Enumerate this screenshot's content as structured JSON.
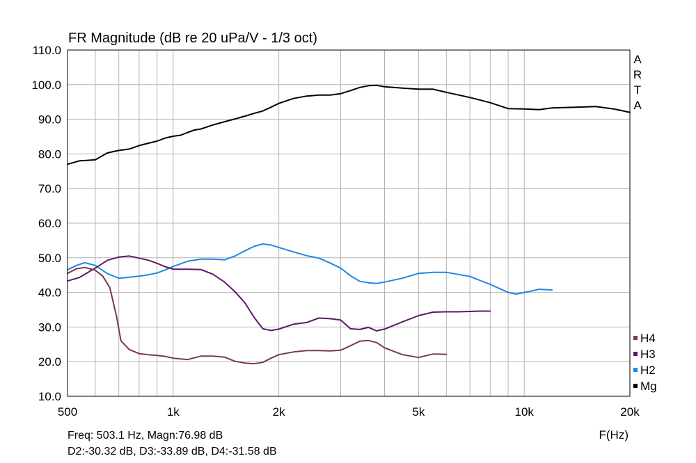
{
  "chart_data": {
    "type": "line",
    "title": "FR Magnitude (dB re 20 uPa/V - 1/3 oct)",
    "xlabel": "F(Hz)",
    "ylabel": "",
    "x_scale": "log",
    "xlim": [
      500,
      20000
    ],
    "ylim": [
      10,
      110
    ],
    "grid": true,
    "legend_position": "bottom-right",
    "watermark": "ARTA",
    "x_ticks": [
      {
        "value": 500,
        "label": "500"
      },
      {
        "value": 1000,
        "label": "1k"
      },
      {
        "value": 2000,
        "label": "2k"
      },
      {
        "value": 5000,
        "label": "5k"
      },
      {
        "value": 10000,
        "label": "10k"
      },
      {
        "value": 20000,
        "label": "20k"
      }
    ],
    "y_ticks": [
      {
        "value": 10,
        "label": "10.0"
      },
      {
        "value": 20,
        "label": "20.0"
      },
      {
        "value": 30,
        "label": "30.0"
      },
      {
        "value": 40,
        "label": "40.0"
      },
      {
        "value": 50,
        "label": "50.0"
      },
      {
        "value": 60,
        "label": "60.0"
      },
      {
        "value": 70,
        "label": "70.0"
      },
      {
        "value": 80,
        "label": "80.0"
      },
      {
        "value": 90,
        "label": "90.0"
      },
      {
        "value": 100,
        "label": "100.0"
      },
      {
        "value": 110,
        "label": "110.0"
      }
    ],
    "series": [
      {
        "name": "Mg",
        "color": "#000000",
        "points": [
          [
            500,
            77.0
          ],
          [
            540,
            78.0
          ],
          [
            600,
            78.3
          ],
          [
            650,
            80.3
          ],
          [
            700,
            81.0
          ],
          [
            750,
            81.4
          ],
          [
            800,
            82.4
          ],
          [
            850,
            83.1
          ],
          [
            900,
            83.7
          ],
          [
            950,
            84.6
          ],
          [
            1000,
            85.1
          ],
          [
            1050,
            85.4
          ],
          [
            1100,
            86.2
          ],
          [
            1150,
            86.9
          ],
          [
            1200,
            87.2
          ],
          [
            1300,
            88.4
          ],
          [
            1400,
            89.3
          ],
          [
            1500,
            90.1
          ],
          [
            1600,
            90.9
          ],
          [
            1700,
            91.7
          ],
          [
            1800,
            92.4
          ],
          [
            1900,
            93.5
          ],
          [
            2000,
            94.6
          ],
          [
            2200,
            96.0
          ],
          [
            2400,
            96.7
          ],
          [
            2600,
            97.0
          ],
          [
            2800,
            97.0
          ],
          [
            3000,
            97.4
          ],
          [
            3200,
            98.3
          ],
          [
            3400,
            99.2
          ],
          [
            3600,
            99.7
          ],
          [
            3800,
            99.8
          ],
          [
            4000,
            99.4
          ],
          [
            4500,
            99.0
          ],
          [
            5000,
            98.7
          ],
          [
            5500,
            98.7
          ],
          [
            6000,
            97.8
          ],
          [
            7000,
            96.3
          ],
          [
            8000,
            94.8
          ],
          [
            9000,
            93.1
          ],
          [
            10000,
            93.0
          ],
          [
            11000,
            92.8
          ],
          [
            12000,
            93.3
          ],
          [
            14000,
            93.5
          ],
          [
            16000,
            93.7
          ],
          [
            18000,
            93.0
          ],
          [
            20000,
            92.0
          ]
        ]
      },
      {
        "name": "H2",
        "color": "#1e88e5",
        "points": [
          [
            500,
            46.5
          ],
          [
            530,
            47.8
          ],
          [
            560,
            48.6
          ],
          [
            600,
            47.8
          ],
          [
            650,
            45.4
          ],
          [
            700,
            44.1
          ],
          [
            750,
            44.4
          ],
          [
            800,
            44.7
          ],
          [
            850,
            45.1
          ],
          [
            900,
            45.6
          ],
          [
            950,
            46.5
          ],
          [
            1000,
            47.5
          ],
          [
            1100,
            49.0
          ],
          [
            1200,
            49.6
          ],
          [
            1300,
            49.6
          ],
          [
            1400,
            49.4
          ],
          [
            1500,
            50.5
          ],
          [
            1600,
            52.0
          ],
          [
            1700,
            53.3
          ],
          [
            1800,
            54.0
          ],
          [
            1900,
            53.7
          ],
          [
            2000,
            53.0
          ],
          [
            2200,
            51.7
          ],
          [
            2400,
            50.6
          ],
          [
            2600,
            49.9
          ],
          [
            2800,
            48.5
          ],
          [
            3000,
            47.0
          ],
          [
            3200,
            44.8
          ],
          [
            3400,
            43.2
          ],
          [
            3600,
            42.8
          ],
          [
            3800,
            42.6
          ],
          [
            4000,
            43.0
          ],
          [
            4500,
            44.1
          ],
          [
            5000,
            45.5
          ],
          [
            5500,
            45.8
          ],
          [
            6000,
            45.8
          ],
          [
            7000,
            44.6
          ],
          [
            8000,
            42.3
          ],
          [
            9000,
            40.0
          ],
          [
            9500,
            39.5
          ],
          [
            10000,
            40.0
          ],
          [
            10500,
            40.4
          ],
          [
            11000,
            40.9
          ],
          [
            12000,
            40.7
          ]
        ]
      },
      {
        "name": "H3",
        "color": "#5c1866",
        "points": [
          [
            500,
            43.3
          ],
          [
            540,
            44.3
          ],
          [
            600,
            47.0
          ],
          [
            650,
            49.3
          ],
          [
            700,
            50.2
          ],
          [
            750,
            50.5
          ],
          [
            800,
            49.9
          ],
          [
            850,
            49.3
          ],
          [
            900,
            48.4
          ],
          [
            950,
            47.4
          ],
          [
            1000,
            46.7
          ],
          [
            1100,
            46.7
          ],
          [
            1200,
            46.6
          ],
          [
            1300,
            45.2
          ],
          [
            1400,
            43.0
          ],
          [
            1500,
            40.2
          ],
          [
            1600,
            37.0
          ],
          [
            1700,
            32.8
          ],
          [
            1800,
            29.5
          ],
          [
            1900,
            29.0
          ],
          [
            2000,
            29.4
          ],
          [
            2200,
            30.8
          ],
          [
            2400,
            31.3
          ],
          [
            2600,
            32.6
          ],
          [
            2800,
            32.4
          ],
          [
            3000,
            32.0
          ],
          [
            3200,
            29.5
          ],
          [
            3400,
            29.3
          ],
          [
            3600,
            29.9
          ],
          [
            3800,
            28.9
          ],
          [
            4000,
            29.4
          ],
          [
            4500,
            31.5
          ],
          [
            5000,
            33.3
          ],
          [
            5500,
            34.3
          ],
          [
            6000,
            34.4
          ],
          [
            6500,
            34.4
          ],
          [
            7000,
            34.5
          ],
          [
            7500,
            34.6
          ],
          [
            8000,
            34.6
          ]
        ]
      },
      {
        "name": "H4",
        "color": "#7b3a44",
        "points": [
          [
            500,
            45.5
          ],
          [
            530,
            46.8
          ],
          [
            560,
            47.2
          ],
          [
            600,
            46.4
          ],
          [
            630,
            44.7
          ],
          [
            660,
            41.4
          ],
          [
            690,
            33.0
          ],
          [
            710,
            26.0
          ],
          [
            750,
            23.5
          ],
          [
            800,
            22.3
          ],
          [
            850,
            22.0
          ],
          [
            900,
            21.8
          ],
          [
            950,
            21.5
          ],
          [
            1000,
            21.0
          ],
          [
            1100,
            20.6
          ],
          [
            1200,
            21.6
          ],
          [
            1300,
            21.6
          ],
          [
            1400,
            21.3
          ],
          [
            1500,
            20.1
          ],
          [
            1600,
            19.6
          ],
          [
            1700,
            19.4
          ],
          [
            1800,
            19.8
          ],
          [
            1900,
            21.0
          ],
          [
            2000,
            22.0
          ],
          [
            2200,
            22.8
          ],
          [
            2400,
            23.2
          ],
          [
            2600,
            23.2
          ],
          [
            2800,
            23.1
          ],
          [
            3000,
            23.3
          ],
          [
            3200,
            24.6
          ],
          [
            3400,
            25.9
          ],
          [
            3600,
            26.1
          ],
          [
            3800,
            25.5
          ],
          [
            4000,
            24.0
          ],
          [
            4500,
            22.0
          ],
          [
            5000,
            21.2
          ],
          [
            5500,
            22.2
          ],
          [
            6000,
            22.1
          ]
        ]
      }
    ]
  },
  "readout": {
    "line1": "Freq: 503.1 Hz, Magn:76.98 dB",
    "line2": "D2:-30.32 dB, D3:-33.89 dB, D4:-31.58 dB"
  },
  "legend": {
    "order": [
      "H4",
      "H3",
      "H2",
      "Mg"
    ]
  }
}
